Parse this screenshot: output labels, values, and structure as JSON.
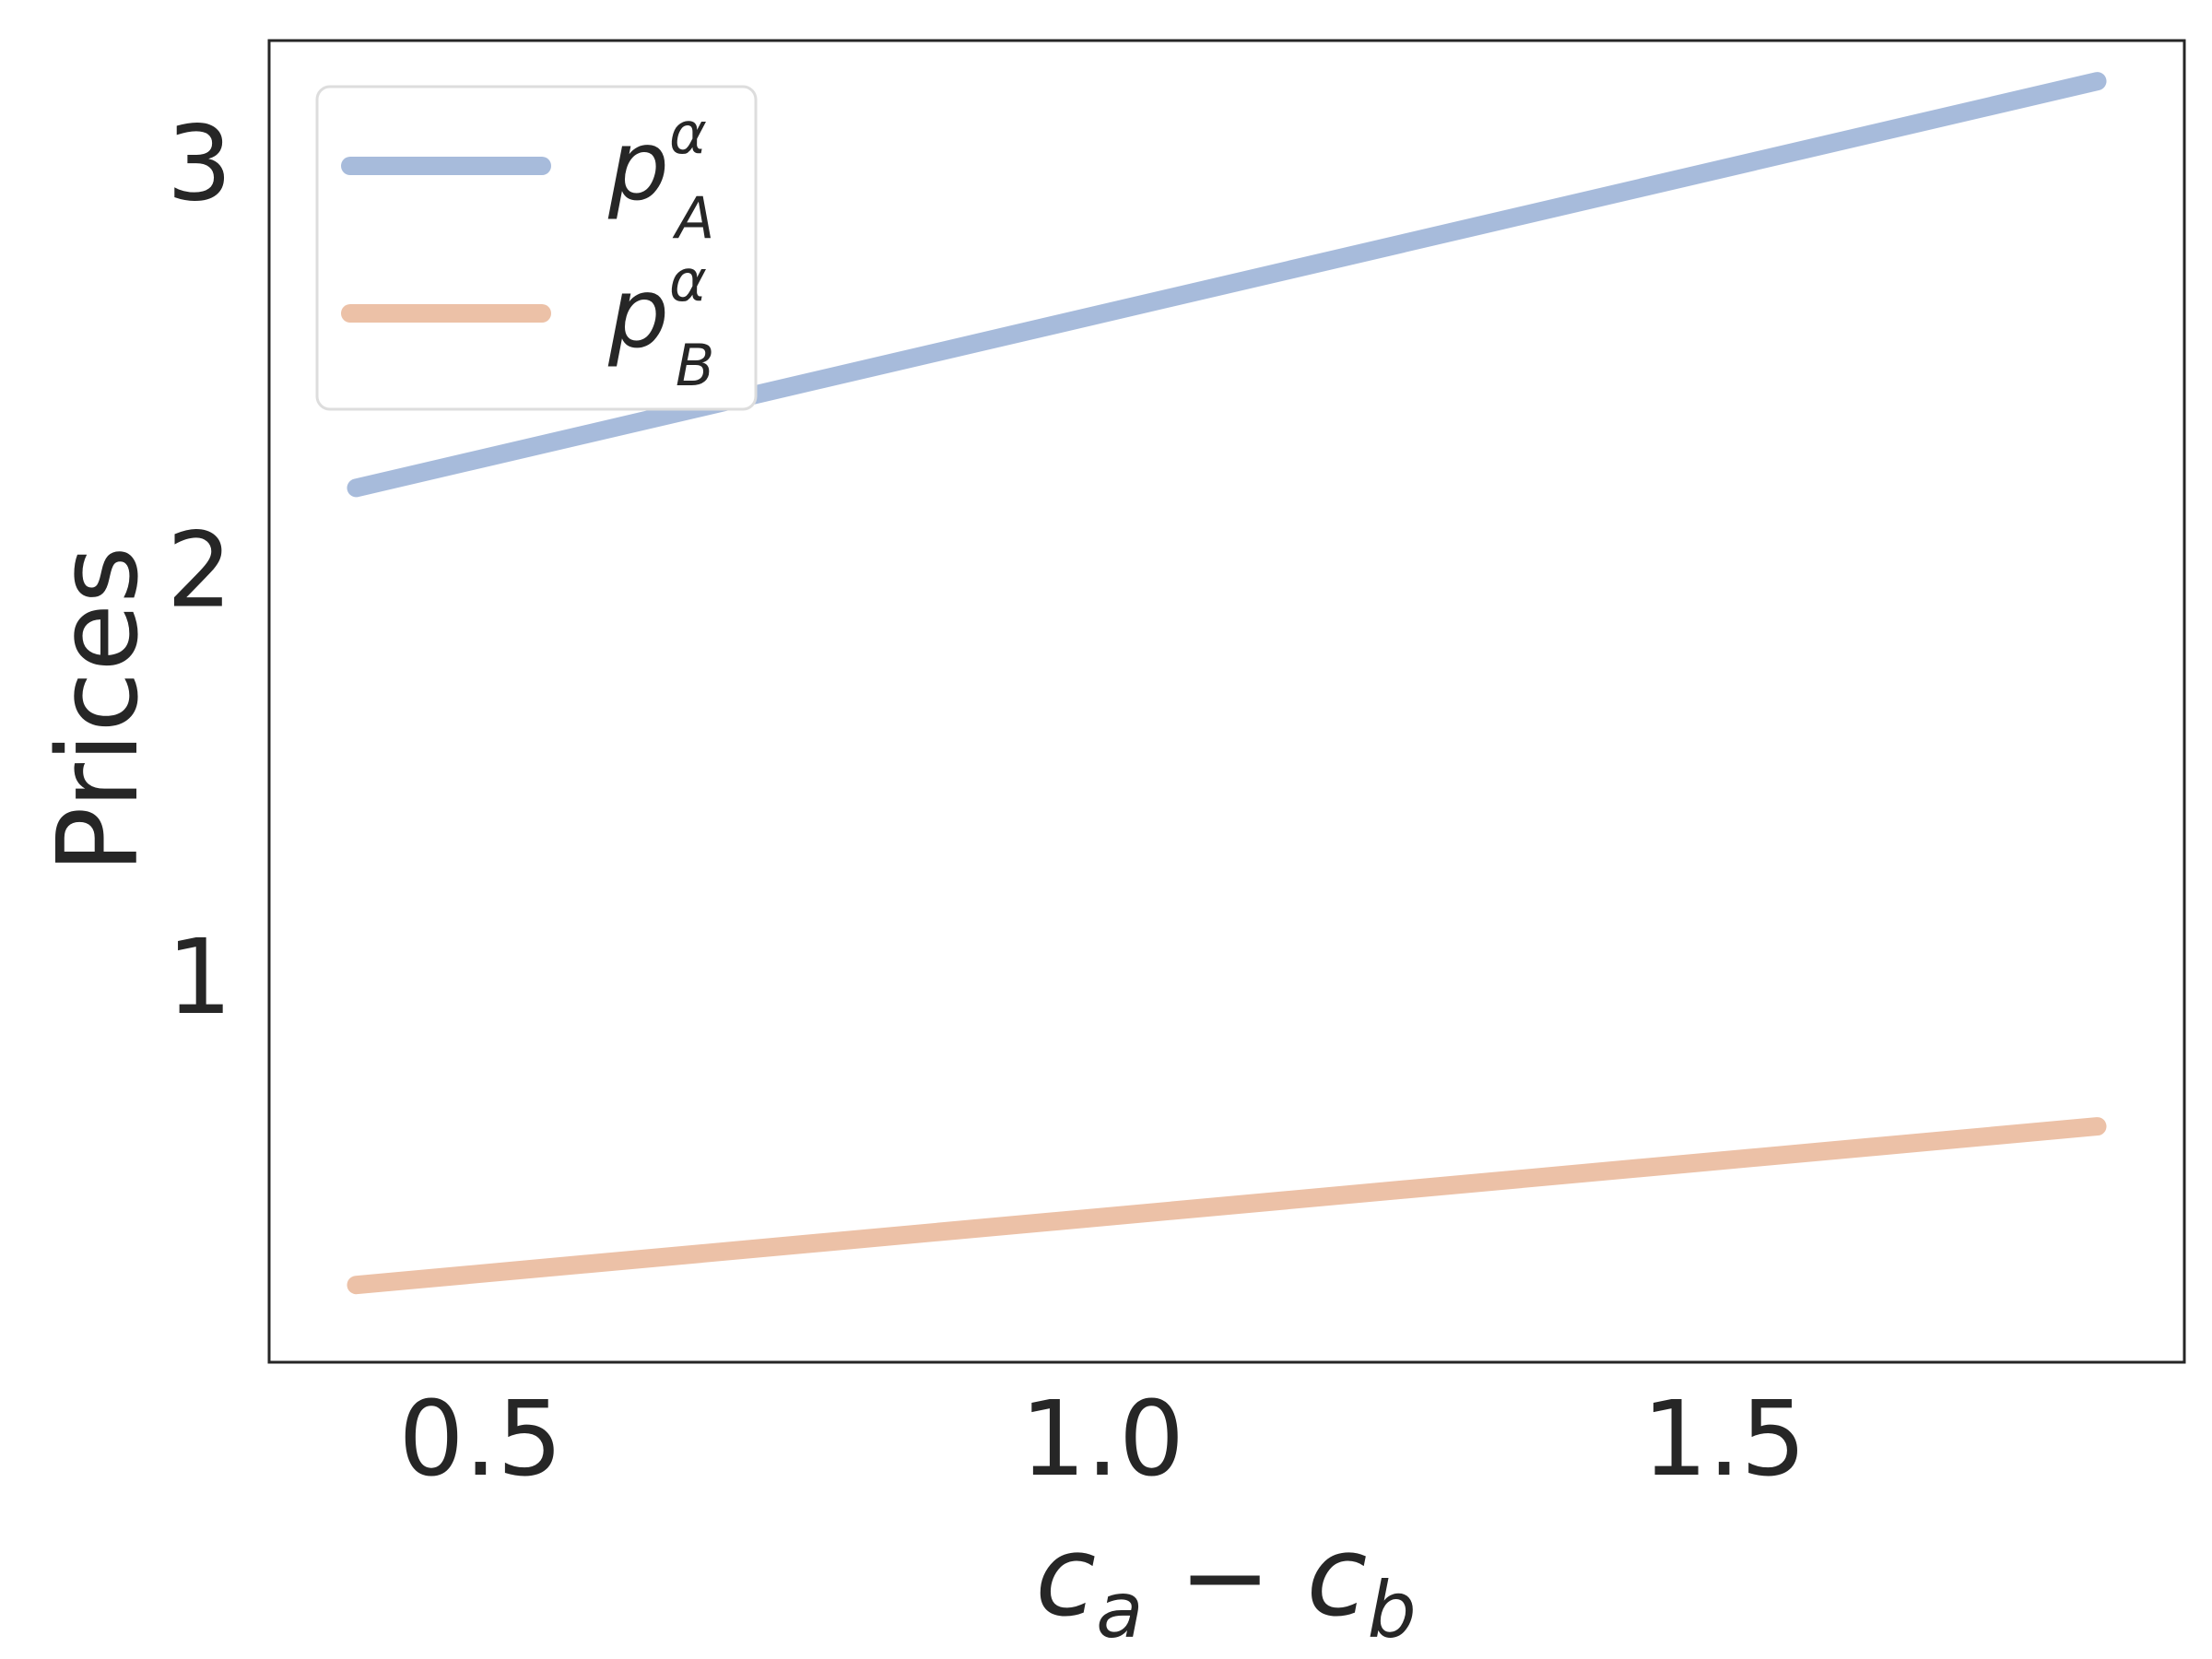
{
  "chart_data": {
    "type": "line",
    "title": "",
    "xlabel": "c_a − c_b",
    "ylabel": "Prices",
    "xlim": [
      0.33,
      1.87
    ],
    "ylim": [
      0.05,
      3.3
    ],
    "xticks": [
      0.5,
      1.0,
      1.5
    ],
    "xtick_labels": [
      "0.5",
      "1.0",
      "1.5"
    ],
    "yticks": [
      1,
      2,
      3
    ],
    "ytick_labels": [
      "1",
      "2",
      "3"
    ],
    "grid": false,
    "legend": "top-left",
    "series": [
      {
        "name": "p_A^α",
        "color": "#a7bbdb",
        "x": [
          0.4,
          1.8
        ],
        "y": [
          2.2,
          3.2
        ]
      },
      {
        "name": "p_B^α",
        "color": "#ecc1a7",
        "x": [
          0.4,
          1.8
        ],
        "y": [
          0.24,
          0.63
        ]
      }
    ]
  }
}
